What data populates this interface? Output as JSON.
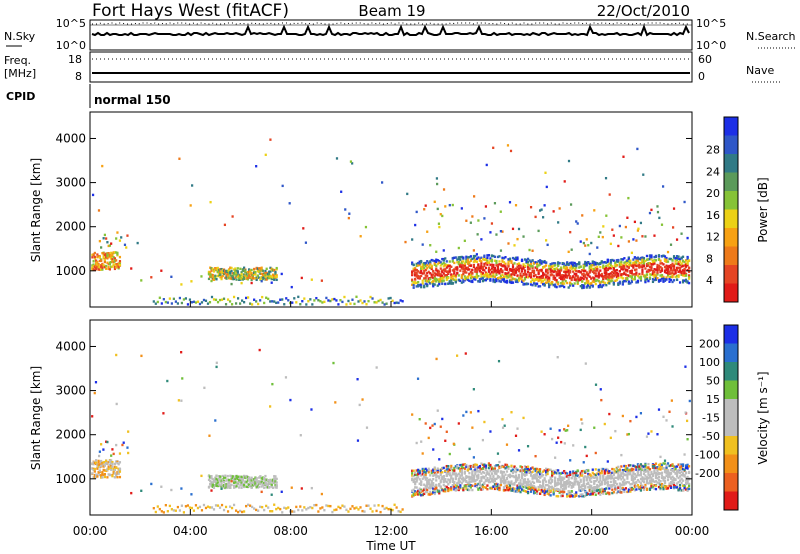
{
  "header": {
    "station": "Fort Hays West (fitACF)",
    "beam": "Beam 19",
    "date": "22/Oct/2010"
  },
  "aux_panels": {
    "nsky_label": "N.Sky",
    "nsky_top_tick": "10^5",
    "nsky_bottom_tick": "10^0",
    "nsearch_label": "N.Search",
    "nsearch_top_tick": "10^5",
    "nsearch_bottom_tick": "10^0",
    "freq_label_1": "Freq.",
    "freq_label_2": "[MHz]",
    "freq_top_tick": "18",
    "freq_bottom_tick": "8",
    "nave_label": "Nave",
    "nave_top_tick": "60",
    "nave_bottom_tick": "0",
    "cpid_label": "CPID",
    "cpid_value": "normal 150"
  },
  "chart_data": [
    {
      "type": "heatmap",
      "ylabel": "Slant Range [km]",
      "xlabel": "Time UT",
      "x_ticks": [
        "00:00",
        "04:00",
        "08:00",
        "12:00",
        "16:00",
        "20:00",
        "00:00"
      ],
      "y_ticks": [
        1000,
        2000,
        3000,
        4000
      ],
      "ylim": [
        180,
        4600
      ],
      "colorbar": {
        "label": "Power [dB]",
        "ticks": [
          "4",
          "8",
          "12",
          "16",
          "20",
          "24",
          "28"
        ],
        "colors": [
          "#1c2fe6",
          "#2f57c8",
          "#317a86",
          "#5b9a5a",
          "#86c337",
          "#ecd116",
          "#f7a113",
          "#ee7a1a",
          "#e54524",
          "#e11b18"
        ]
      },
      "regions": [
        {
          "t_start": 0.0,
          "t_end": 1.2,
          "r_min": 1000,
          "r_max": 1400
        },
        {
          "t_start": 0.5,
          "t_end": 1.2,
          "r_min": 1500,
          "r_max": 1900
        },
        {
          "t_start": 4.7,
          "t_end": 7.4,
          "r_min": 800,
          "r_max": 1100
        },
        {
          "t_start": 12.8,
          "t_end": 24.0,
          "r_min": 700,
          "r_max": 1400
        }
      ]
    },
    {
      "type": "heatmap",
      "ylabel": "Slant Range [km]",
      "xlabel": "Time UT",
      "x_ticks": [
        "00:00",
        "04:00",
        "08:00",
        "12:00",
        "16:00",
        "20:00",
        "00:00"
      ],
      "y_ticks": [
        1000,
        2000,
        3000,
        4000
      ],
      "ylim": [
        180,
        4600
      ],
      "colorbar": {
        "label": "Velocity [m s⁻¹]",
        "ticks": [
          "200",
          "100",
          "50",
          "15",
          "-15",
          "-50",
          "-100",
          "-200"
        ],
        "colors": [
          "#1c2fe6",
          "#2a6fcf",
          "#2f8a7a",
          "#6fbf3a",
          "#bdbdbd",
          "#bdbdbd",
          "#f0c020",
          "#f29018",
          "#ec6020",
          "#e11b18"
        ]
      }
    }
  ]
}
